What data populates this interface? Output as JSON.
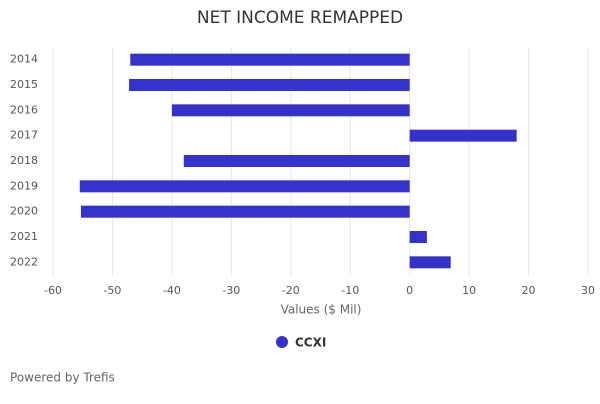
{
  "chart_data": {
    "type": "bar",
    "orientation": "horizontal",
    "title": "NET INCOME REMAPPED",
    "categories": [
      "2014",
      "2015",
      "2016",
      "2017",
      "2018",
      "2019",
      "2020",
      "2021",
      "2022"
    ],
    "series": [
      {
        "name": "CCXI",
        "color": "#3333cc",
        "values": [
          -47,
          -47.2,
          -40,
          18,
          -38,
          -55.5,
          -55.3,
          2.9,
          6.9
        ]
      }
    ],
    "xlabel": "Values ($ Mil)",
    "xlim": [
      -60,
      30
    ],
    "xticks": [
      -60,
      -50,
      -40,
      -30,
      -20,
      -10,
      0,
      10,
      20,
      30
    ],
    "grid": true,
    "credit": "Powered by Trefis"
  }
}
